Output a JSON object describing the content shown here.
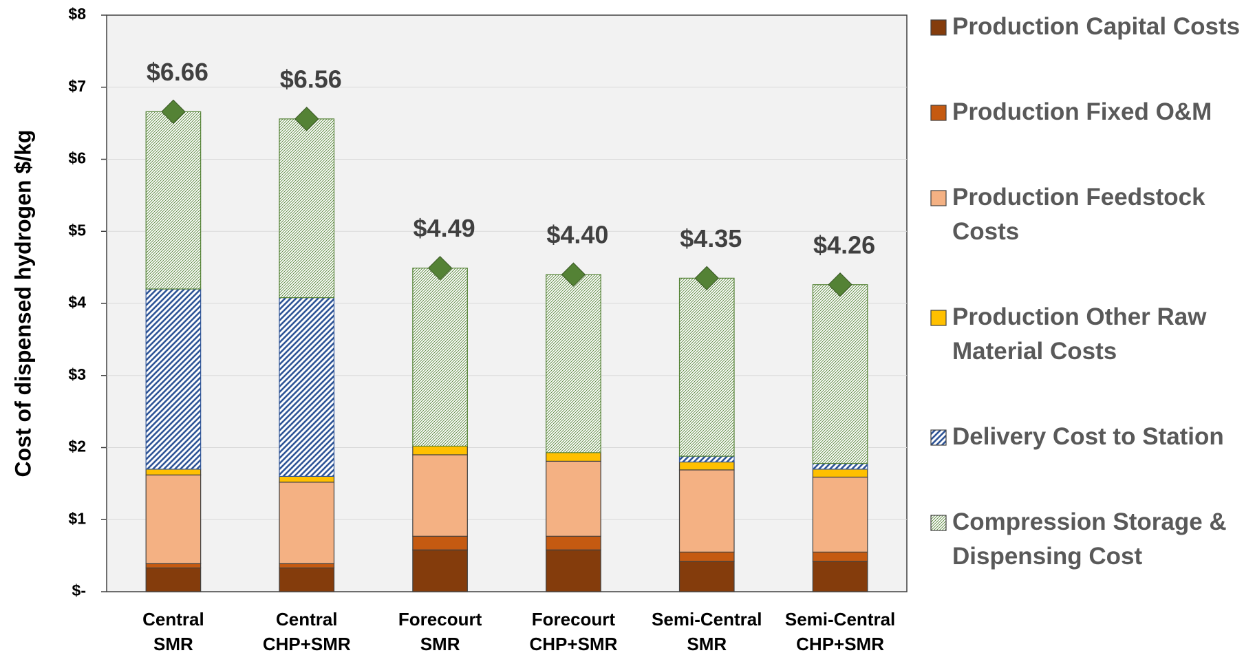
{
  "chart_data": {
    "type": "stacked_bar",
    "y_label": "Cost of dispensed hydrogen $/kg",
    "categories": [
      [
        "Central",
        "SMR"
      ],
      [
        "Central",
        "CHP+SMR"
      ],
      [
        "Forecourt",
        "SMR"
      ],
      [
        "Forecourt",
        "CHP+SMR"
      ],
      [
        "Semi-Central",
        "SMR"
      ],
      [
        "Semi-Central",
        "CHP+SMR"
      ]
    ],
    "series": [
      {
        "name": "Production Capital Costs",
        "color": "#843c0c",
        "values": [
          0.33,
          0.33,
          0.58,
          0.58,
          0.42,
          0.42
        ]
      },
      {
        "name": "Production Fixed O&M",
        "color": "#c55a11",
        "values": [
          0.06,
          0.06,
          0.19,
          0.19,
          0.13,
          0.13
        ]
      },
      {
        "name": "Production Feedstock Costs",
        "color": "#f4b183",
        "values": [
          1.23,
          1.13,
          1.13,
          1.04,
          1.14,
          1.04
        ]
      },
      {
        "name": "Production Other Raw Material Costs",
        "color": "#ffc000",
        "values": [
          0.08,
          0.08,
          0.12,
          0.12,
          0.11,
          0.11
        ]
      },
      {
        "name": "Delivery Cost to Station",
        "color": "#2f5597",
        "pattern": "stripes",
        "values": [
          2.5,
          2.48,
          0,
          0,
          0.08,
          0.08
        ]
      },
      {
        "name": "Compression Storage & Dispensing Cost",
        "color": "#548235",
        "pattern": "hatch",
        "values": [
          2.46,
          2.48,
          2.47,
          2.47,
          2.47,
          2.48
        ]
      }
    ],
    "totals": {
      "color": "#548235",
      "values": [
        6.66,
        6.56,
        4.49,
        4.4,
        4.35,
        4.26
      ],
      "value_labels": [
        "$6.66",
        "$6.56",
        "$4.49",
        "$4.40",
        "$4.35",
        "$4.26"
      ]
    },
    "ylim": [
      0,
      8
    ],
    "yticks": [
      {
        "value": 0,
        "label": "$-"
      },
      {
        "value": 1,
        "label": "$1"
      },
      {
        "value": 2,
        "label": "$2"
      },
      {
        "value": 3,
        "label": "$3"
      },
      {
        "value": 4,
        "label": "$4"
      },
      {
        "value": 5,
        "label": "$5"
      },
      {
        "value": 6,
        "label": "$6"
      },
      {
        "value": 7,
        "label": "$7"
      },
      {
        "value": 8,
        "label": "$8"
      }
    ],
    "grid": true
  }
}
